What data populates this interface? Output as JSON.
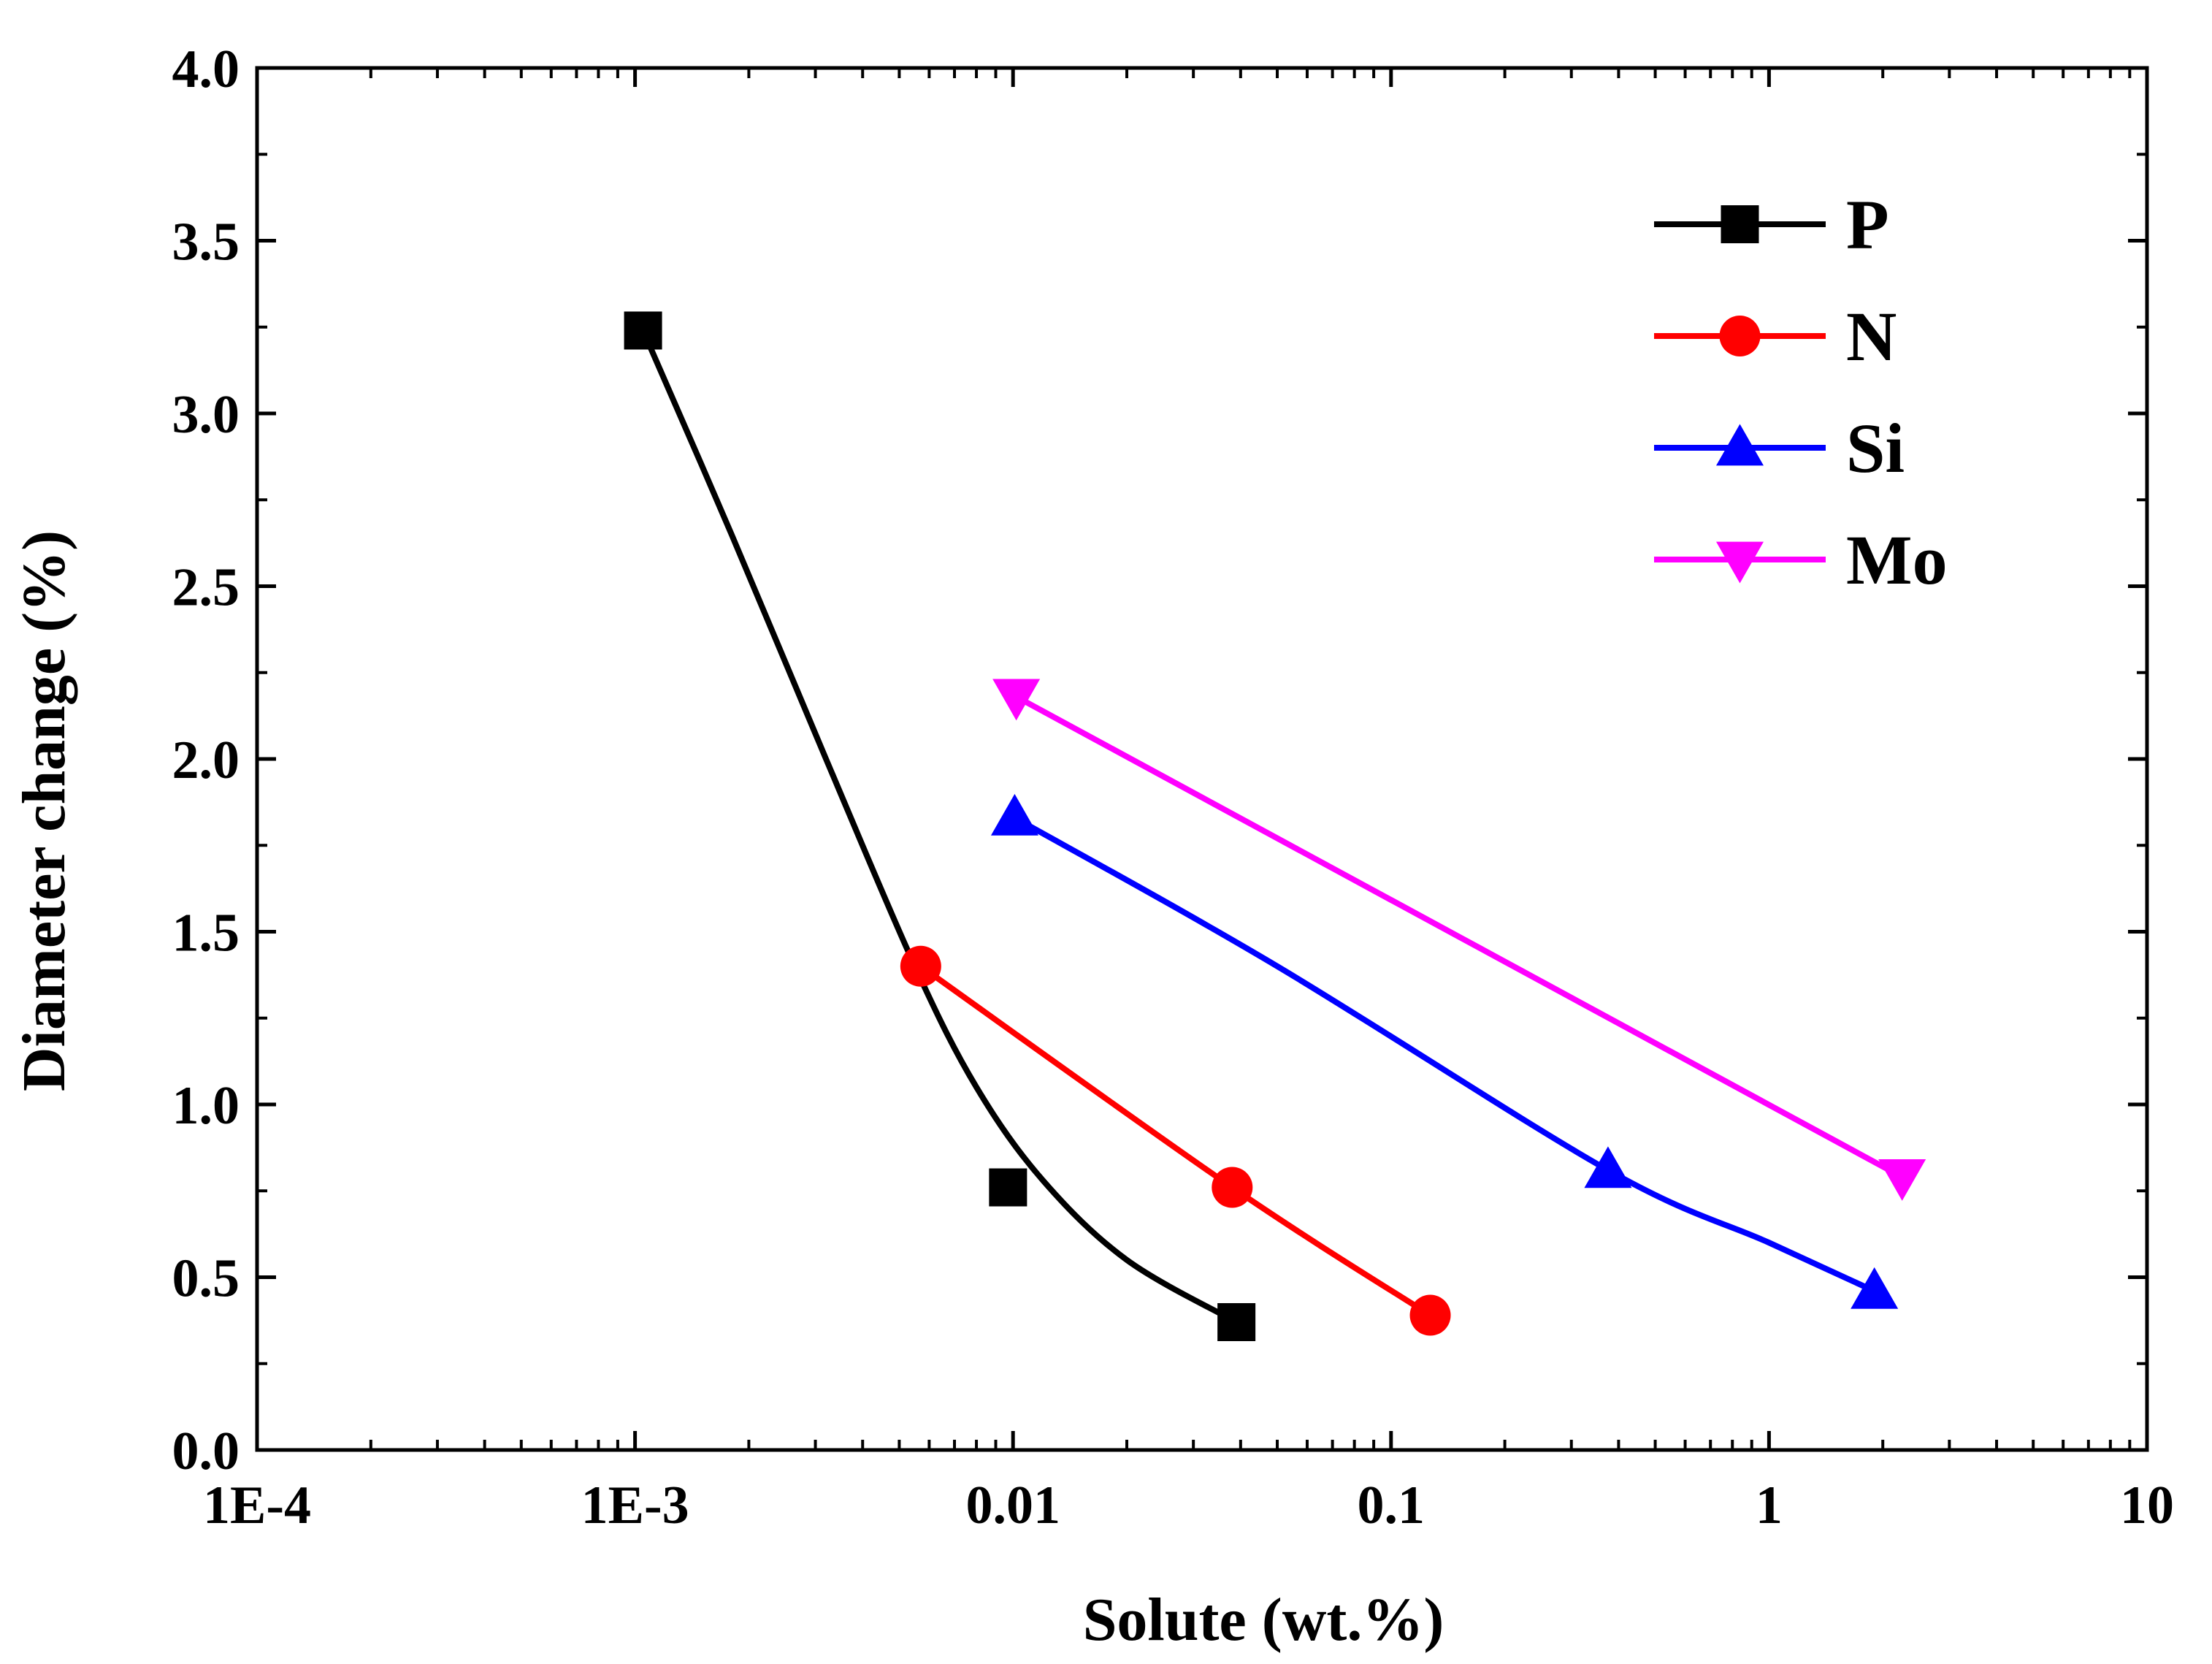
{
  "chart_data": {
    "type": "scatter",
    "title": "",
    "xlabel": "Solute (wt.%)",
    "ylabel": "Diameter change (%)",
    "x_scale": "log",
    "xlim": [
      0.0001,
      10
    ],
    "ylim": [
      0,
      4.0
    ],
    "x_ticks": [
      {
        "value": 0.0001,
        "label": "1E-4"
      },
      {
        "value": 0.001,
        "label": "1E-3"
      },
      {
        "value": 0.01,
        "label": "0.01"
      },
      {
        "value": 0.1,
        "label": "0.1"
      },
      {
        "value": 1,
        "label": "1"
      },
      {
        "value": 10,
        "label": "10"
      }
    ],
    "y_ticks": [
      {
        "value": 0.0,
        "label": "0.0"
      },
      {
        "value": 0.5,
        "label": "0.5"
      },
      {
        "value": 1.0,
        "label": "1.0"
      },
      {
        "value": 1.5,
        "label": "1.5"
      },
      {
        "value": 2.0,
        "label": "2.0"
      },
      {
        "value": 2.5,
        "label": "2.5"
      },
      {
        "value": 3.0,
        "label": "3.0"
      },
      {
        "value": 3.5,
        "label": "3.5"
      },
      {
        "value": 4.0,
        "label": "4.0"
      }
    ],
    "grid": false,
    "legend_position": "top-right",
    "series": [
      {
        "name": "P",
        "color": "#000000",
        "marker": "square",
        "points": [
          {
            "x": 0.00105,
            "y": 3.24
          },
          {
            "x": 0.0097,
            "y": 0.76
          },
          {
            "x": 0.039,
            "y": 0.37
          }
        ],
        "curve": [
          {
            "x": 0.00105,
            "y": 3.24
          },
          {
            "x": 0.0018,
            "y": 2.65
          },
          {
            "x": 0.0032,
            "y": 2.0
          },
          {
            "x": 0.0055,
            "y": 1.4
          },
          {
            "x": 0.008,
            "y": 1.05
          },
          {
            "x": 0.012,
            "y": 0.78
          },
          {
            "x": 0.02,
            "y": 0.55
          },
          {
            "x": 0.039,
            "y": 0.37
          }
        ]
      },
      {
        "name": "N",
        "color": "#ff0000",
        "marker": "circle",
        "points": [
          {
            "x": 0.0057,
            "y": 1.4
          },
          {
            "x": 0.038,
            "y": 0.76
          },
          {
            "x": 0.127,
            "y": 0.39
          }
        ],
        "curve": [
          {
            "x": 0.0057,
            "y": 1.4
          },
          {
            "x": 0.038,
            "y": 0.76
          },
          {
            "x": 0.127,
            "y": 0.39
          }
        ]
      },
      {
        "name": "Si",
        "color": "#0000ff",
        "marker": "triangle-up",
        "points": [
          {
            "x": 0.0101,
            "y": 1.83
          },
          {
            "x": 0.375,
            "y": 0.81
          },
          {
            "x": 1.9,
            "y": 0.46
          }
        ],
        "curve": [
          {
            "x": 0.0101,
            "y": 1.83
          },
          {
            "x": 0.05,
            "y": 1.4
          },
          {
            "x": 0.375,
            "y": 0.81
          },
          {
            "x": 1.0,
            "y": 0.6
          },
          {
            "x": 1.9,
            "y": 0.46
          }
        ]
      },
      {
        "name": "Mo",
        "color": "#ff00ff",
        "marker": "triangle-down",
        "points": [
          {
            "x": 0.0102,
            "y": 2.18
          },
          {
            "x": 2.25,
            "y": 0.79
          }
        ],
        "curve": [
          {
            "x": 0.0102,
            "y": 2.18
          },
          {
            "x": 2.25,
            "y": 0.79
          }
        ]
      }
    ]
  }
}
